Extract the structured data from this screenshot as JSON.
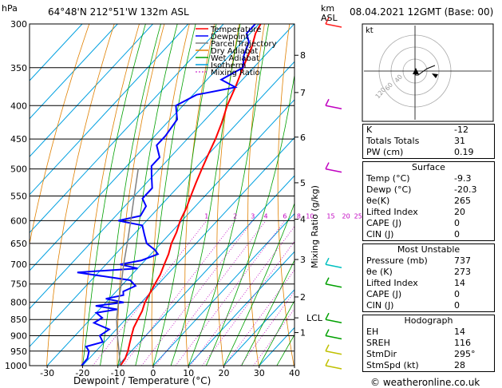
{
  "header": {
    "pressure_unit": "hPa",
    "location": "64°48'N  212°51'W  132m  ASL",
    "alt_unit_km": "km",
    "alt_unit_asl": "ASL",
    "datetime": "08.04.2021  12GMT  (Base: 00)"
  },
  "legend": [
    {
      "label": "Temperature",
      "color": "#ff0000"
    },
    {
      "label": "Dewpoint",
      "color": "#0000ff"
    },
    {
      "label": "Parcel Trajectory",
      "color": "#808080"
    },
    {
      "label": "Dry Adiabat",
      "color": "#e08000"
    },
    {
      "label": "Wet Adiabat",
      "color": "#00a000"
    },
    {
      "label": "Isotherm",
      "color": "#00a0e0"
    },
    {
      "label": "Mixing Ratio",
      "color": "#c000c0"
    }
  ],
  "chart_data": {
    "type": "line",
    "title": "",
    "xlabel": "Dewpoint / Temperature (°C)",
    "ylabel": "hPa",
    "xlim": [
      -35,
      40
    ],
    "ylim": [
      1000,
      300
    ],
    "x_ticks": [
      -30,
      -20,
      -10,
      0,
      10,
      20,
      30,
      40
    ],
    "pressure_levels": [
      300,
      350,
      400,
      450,
      500,
      550,
      600,
      650,
      700,
      750,
      800,
      850,
      900,
      950,
      1000
    ],
    "height_km_labels": [
      {
        "km": "8",
        "p": 335
      },
      {
        "km": "7",
        "p": 382
      },
      {
        "km": "6",
        "p": 447
      },
      {
        "km": "5",
        "p": 525
      },
      {
        "km": "4",
        "p": 597
      },
      {
        "km": "3",
        "p": 688
      },
      {
        "km": "2",
        "p": 785
      },
      {
        "km": "LCL",
        "p": 845
      },
      {
        "km": "1",
        "p": 890
      }
    ],
    "mixing_ratio_axis_label": "Mixing Ratio (g/kg)",
    "mixing_ratio_labels": [
      "1",
      "2",
      "3",
      "4",
      "6",
      "8",
      "10",
      "15",
      "20",
      "25"
    ],
    "series": [
      {
        "name": "Temperature",
        "color": "#ff0000",
        "points": [
          [
            1000,
            -9.3
          ],
          [
            975,
            -9.8
          ],
          [
            950,
            -11
          ],
          [
            925,
            -12.5
          ],
          [
            900,
            -14
          ],
          [
            875,
            -15.5
          ],
          [
            850,
            -16.5
          ],
          [
            825,
            -17.5
          ],
          [
            800,
            -19
          ],
          [
            775,
            -20
          ],
          [
            750,
            -21
          ],
          [
            725,
            -22
          ],
          [
            700,
            -23.5
          ],
          [
            675,
            -25
          ],
          [
            650,
            -27
          ],
          [
            625,
            -28.5
          ],
          [
            600,
            -30.5
          ],
          [
            575,
            -32
          ],
          [
            550,
            -34
          ],
          [
            525,
            -36
          ],
          [
            500,
            -38
          ],
          [
            475,
            -40
          ],
          [
            450,
            -42
          ],
          [
            425,
            -44.5
          ],
          [
            400,
            -47.5
          ],
          [
            375,
            -50
          ],
          [
            350,
            -53
          ],
          [
            325,
            -56
          ],
          [
            310,
            -58.5
          ],
          [
            300,
            -59.5
          ]
        ]
      },
      {
        "name": "Dewpoint",
        "color": "#0000ff",
        "points": [
          [
            1000,
            -20.3
          ],
          [
            975,
            -20.5
          ],
          [
            950,
            -22
          ],
          [
            935,
            -24
          ],
          [
            920,
            -20.5
          ],
          [
            900,
            -23
          ],
          [
            880,
            -22
          ],
          [
            860,
            -28
          ],
          [
            845,
            -27
          ],
          [
            830,
            -30
          ],
          [
            820,
            -25
          ],
          [
            810,
            -32
          ],
          [
            800,
            -25
          ],
          [
            790,
            -31
          ],
          [
            780,
            -27
          ],
          [
            770,
            -28
          ],
          [
            755,
            -26
          ],
          [
            740,
            -29
          ],
          [
            720,
            -46
          ],
          [
            710,
            -30
          ],
          [
            700,
            -36
          ],
          [
            690,
            -31
          ],
          [
            675,
            -28
          ],
          [
            665,
            -30
          ],
          [
            650,
            -34
          ],
          [
            630,
            -37
          ],
          [
            610,
            -40
          ],
          [
            600,
            -48
          ],
          [
            590,
            -43
          ],
          [
            570,
            -44
          ],
          [
            555,
            -47
          ],
          [
            535,
            -47
          ],
          [
            515,
            -50
          ],
          [
            495,
            -53
          ],
          [
            480,
            -53
          ],
          [
            460,
            -57
          ],
          [
            445,
            -57
          ],
          [
            420,
            -58
          ],
          [
            400,
            -62
          ],
          [
            385,
            -59
          ],
          [
            375,
            -50
          ],
          [
            365,
            -56
          ],
          [
            350,
            -53
          ],
          [
            335,
            -56
          ],
          [
            320,
            -58
          ],
          [
            310,
            -61
          ],
          [
            300,
            -61
          ]
        ]
      },
      {
        "name": "Parcel Trajectory",
        "color": "#808080",
        "points": [
          [
            1000,
            -9.3
          ],
          [
            950,
            -13.5
          ],
          [
            900,
            -18
          ],
          [
            850,
            -22.5
          ],
          [
            800,
            -26.5
          ],
          [
            750,
            -30.5
          ],
          [
            700,
            -35
          ],
          [
            650,
            -39.5
          ],
          [
            600,
            -44.5
          ],
          [
            550,
            -50
          ],
          [
            500,
            -56
          ]
        ]
      }
    ]
  },
  "hodograph": {
    "label": "kt",
    "ring_labels": [
      "40",
      "60",
      "120"
    ],
    "points": [
      [
        0,
        0
      ],
      [
        -1,
        3
      ],
      [
        1,
        5
      ],
      [
        4,
        5
      ],
      [
        8,
        2
      ],
      [
        15,
        -3
      ],
      [
        25,
        -7
      ]
    ]
  },
  "indices": {
    "k": {
      "label": "K",
      "value": "-12"
    },
    "tt": {
      "label": "Totals Totals",
      "value": "31"
    },
    "pw": {
      "label": "PW (cm)",
      "value": "0.19"
    }
  },
  "surface": {
    "title": "Surface",
    "rows": [
      {
        "label": "Temp (°C)",
        "value": "-9.3"
      },
      {
        "label": "Dewp (°C)",
        "value": "-20.3"
      },
      {
        "label": "θe(K)",
        "value": "265"
      },
      {
        "label": "Lifted Index",
        "value": "20"
      },
      {
        "label": "CAPE (J)",
        "value": "0"
      },
      {
        "label": "CIN (J)",
        "value": "0"
      }
    ]
  },
  "most_unstable": {
    "title": "Most Unstable",
    "rows": [
      {
        "label": "Pressure (mb)",
        "value": "737"
      },
      {
        "label": "θe (K)",
        "value": "273"
      },
      {
        "label": "Lifted Index",
        "value": "14"
      },
      {
        "label": "CAPE (J)",
        "value": "0"
      },
      {
        "label": "CIN (J)",
        "value": "0"
      }
    ]
  },
  "hodo_table": {
    "title": "Hodograph",
    "rows": [
      {
        "label": "EH",
        "value": "14"
      },
      {
        "label": "SREH",
        "value": "116"
      },
      {
        "label": "StmDir",
        "value": "295°"
      },
      {
        "label": "StmSpd (kt)",
        "value": "28"
      }
    ]
  },
  "footer": "© weatheronline.co.uk"
}
